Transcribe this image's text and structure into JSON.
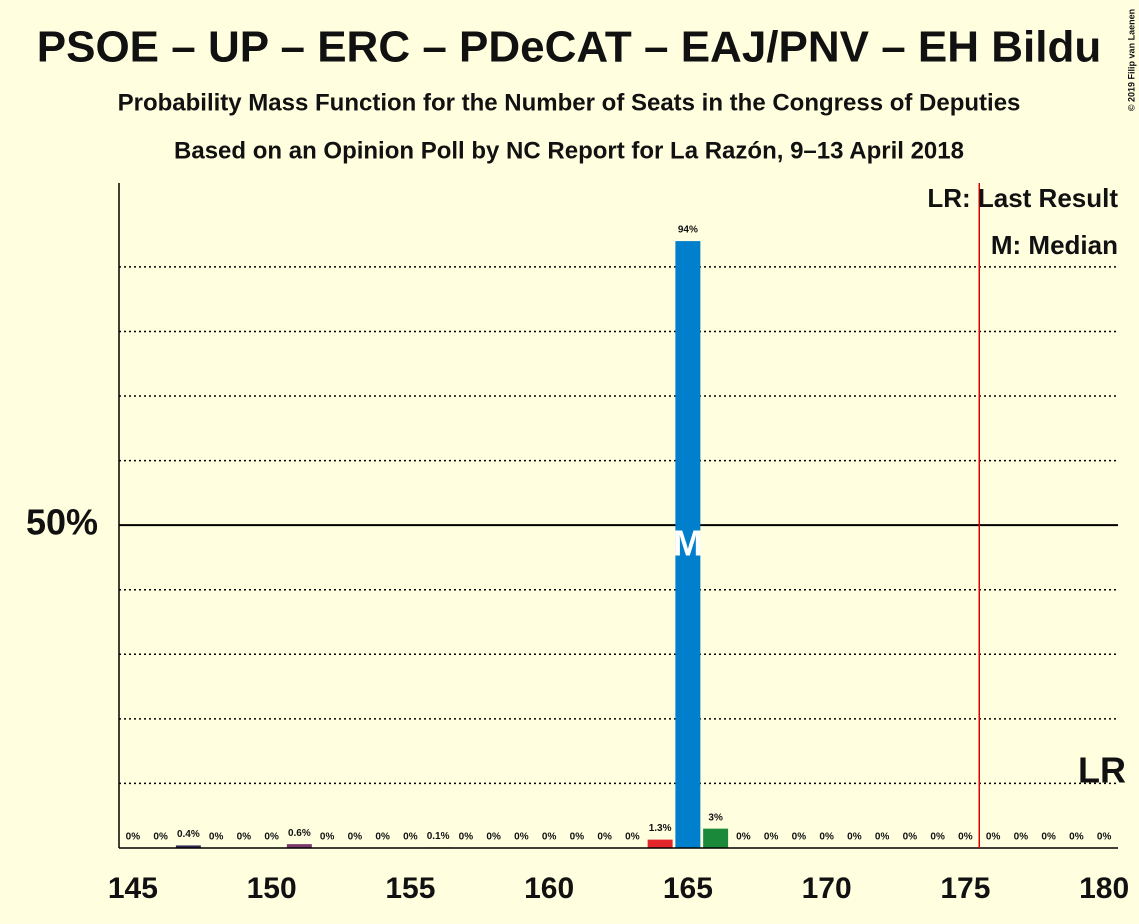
{
  "chart_data": {
    "type": "bar",
    "title": "PSOE – UP – ERC – PDeCAT – EAJ/PNV – EH Bildu",
    "subtitle": "Probability Mass Function for the Number of Seats in the Congress of Deputies",
    "subtitle2": "Based on an Opinion Poll by NC Report for La Razón, 9–13 April 2018",
    "copyright": "© 2019 Filip van Laenen",
    "x": [
      145,
      146,
      147,
      148,
      149,
      150,
      151,
      152,
      153,
      154,
      155,
      156,
      157,
      158,
      159,
      160,
      161,
      162,
      163,
      164,
      165,
      166,
      167,
      168,
      169,
      170,
      171,
      172,
      173,
      174,
      175,
      176,
      177,
      178,
      179,
      180
    ],
    "values": [
      0,
      0,
      0.4,
      0,
      0,
      0,
      0.6,
      0,
      0,
      0,
      0,
      0.1,
      0,
      0,
      0,
      0,
      0,
      0,
      0,
      1.3,
      94,
      3,
      0,
      0,
      0,
      0,
      0,
      0,
      0,
      0,
      0,
      0,
      0,
      0,
      0,
      0
    ],
    "value_labels": [
      "0%",
      "0%",
      "0.4%",
      "0%",
      "0%",
      "0%",
      "0.6%",
      "0%",
      "0%",
      "0%",
      "0%",
      "0.1%",
      "0%",
      "0%",
      "0%",
      "0%",
      "0%",
      "0%",
      "0%",
      "1.3%",
      "94%",
      "3%",
      "0%",
      "0%",
      "0%",
      "0%",
      "0%",
      "0%",
      "0%",
      "0%",
      "0%",
      "0%",
      "0%",
      "0%",
      "0%",
      "0%"
    ],
    "colors": [
      "#0080cc",
      "#0080cc",
      "#2f2a55",
      "#0080cc",
      "#0080cc",
      "#0080cc",
      "#7a3a6e",
      "#0080cc",
      "#0080cc",
      "#0080cc",
      "#0080cc",
      "#d4a000",
      "#0080cc",
      "#0080cc",
      "#0080cc",
      "#0080cc",
      "#0080cc",
      "#0080cc",
      "#0080cc",
      "#e3262c",
      "#0080cc",
      "#1a8a3a",
      "#0080cc",
      "#0080cc",
      "#0080cc",
      "#0080cc",
      "#0080cc",
      "#0080cc",
      "#0080cc",
      "#0080cc",
      "#0080cc",
      "#0080cc",
      "#0080cc",
      "#0080cc",
      "#0080cc",
      "#0080cc"
    ],
    "xlim": [
      144.5,
      180.5
    ],
    "xticks": [
      145,
      150,
      155,
      160,
      165,
      170,
      175,
      180
    ],
    "ylim": [
      0,
      103
    ],
    "yticks": [
      {
        "value": 50,
        "label": "50%"
      }
    ],
    "grid_lines": [
      10,
      20,
      30,
      40,
      60,
      70,
      80,
      90
    ],
    "median": {
      "value": 165,
      "label": "M"
    },
    "last_result": {
      "value": 176,
      "label": "LR"
    },
    "legend": [
      "LR: Last Result",
      "M: Median"
    ]
  }
}
